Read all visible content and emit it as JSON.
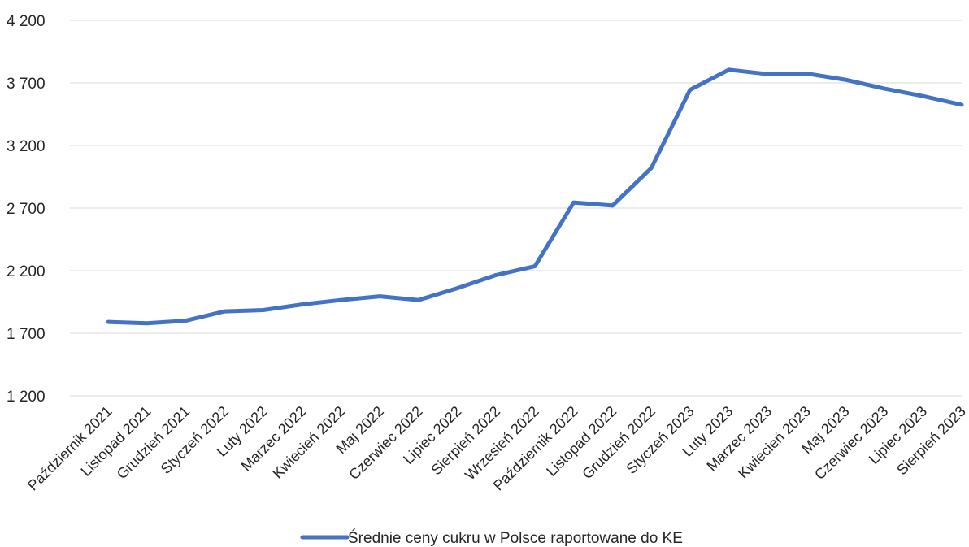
{
  "chart_data": {
    "type": "line",
    "title": "",
    "xlabel": "",
    "ylabel": "",
    "ylim": [
      1200,
      4200
    ],
    "yticks": [
      1200,
      1700,
      2200,
      2700,
      3200,
      3700,
      4200
    ],
    "ytick_labels": [
      "1 200",
      "1 700",
      "2 200",
      "2 700",
      "3 200",
      "3 700",
      "4 200"
    ],
    "grid": true,
    "legend_position": "bottom",
    "categories": [
      "Październik 2021",
      "Listopad 2021",
      "Grudzień 2021",
      "Styczeń 2022",
      "Luty 2022",
      "Marzec 2022",
      "Kwiecień 2022",
      "Maj 2022",
      "Czerwiec 2022",
      "Lipiec 2022",
      "Sierpień 2022",
      "Wrzesień 2022",
      "Październik 2022",
      "Listopad 2022",
      "Grudzień 2022",
      "Styczeń 2023",
      "Luty 2023",
      "Marzec 2023",
      "Kwiecień 2023",
      "Maj 2023",
      "Czerwiec 2023",
      "Lipiec 2023",
      "Sierpień 2023"
    ],
    "series": [
      {
        "name": "Średnie ceny cukru w Polsce raportowane do KE",
        "color": "#4472c4",
        "values": [
          1790,
          1780,
          1800,
          1875,
          1885,
          1930,
          1965,
          1995,
          1965,
          2060,
          2165,
          2235,
          2745,
          2720,
          3020,
          3645,
          3805,
          3770,
          3775,
          3725,
          3655,
          3595,
          3525
        ]
      }
    ]
  }
}
